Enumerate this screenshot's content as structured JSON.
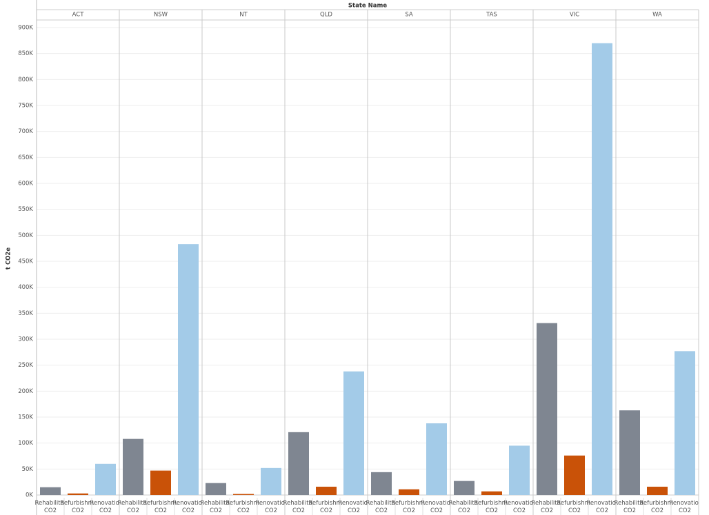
{
  "chart_data": {
    "type": "bar",
    "header": "State Name",
    "y_label": "t CO2e",
    "categories": [
      "ACT",
      "NSW",
      "NT",
      "QLD",
      "SA",
      "TAS",
      "VIC",
      "WA"
    ],
    "series": [
      {
        "name": "Rehabilita CO2",
        "color": "#7f8691",
        "values": [
          15000,
          108000,
          23000,
          121000,
          44000,
          27000,
          331000,
          163000
        ]
      },
      {
        "name": "Refurbishm CO2",
        "color": "#c95208",
        "values": [
          3000,
          47000,
          2000,
          16000,
          11000,
          7000,
          76000,
          16000
        ]
      },
      {
        "name": "Renovatio CO2",
        "color": "#a3cbe8",
        "values": [
          60000,
          483000,
          52000,
          238000,
          138000,
          95000,
          870000,
          277000
        ]
      }
    ],
    "ylim": [
      0,
      900000
    ],
    "yticks": [
      {
        "value": 0,
        "label": "0K"
      },
      {
        "value": 50000,
        "label": "50K"
      },
      {
        "value": 100000,
        "label": "100K"
      },
      {
        "value": 150000,
        "label": "150K"
      },
      {
        "value": 200000,
        "label": "200K"
      },
      {
        "value": 250000,
        "label": "250K"
      },
      {
        "value": 300000,
        "label": "300K"
      },
      {
        "value": 350000,
        "label": "350K"
      },
      {
        "value": 400000,
        "label": "400K"
      },
      {
        "value": 450000,
        "label": "450K"
      },
      {
        "value": 500000,
        "label": "500K"
      },
      {
        "value": 550000,
        "label": "550K"
      },
      {
        "value": 600000,
        "label": "600K"
      },
      {
        "value": 650000,
        "label": "650K"
      },
      {
        "value": 700000,
        "label": "700K"
      },
      {
        "value": 750000,
        "label": "750K"
      },
      {
        "value": 800000,
        "label": "800K"
      },
      {
        "value": 850000,
        "label": "850K"
      },
      {
        "value": 900000,
        "label": "900K"
      }
    ],
    "grid": true
  }
}
